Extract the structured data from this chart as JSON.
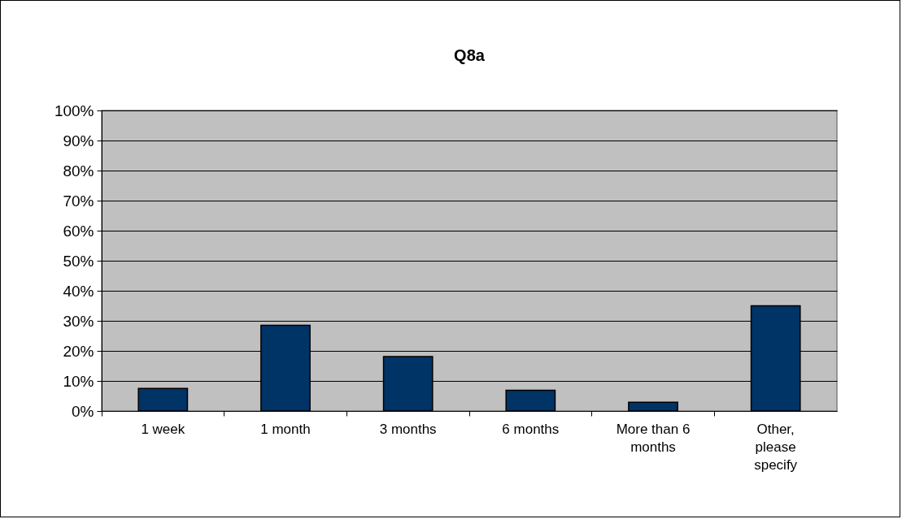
{
  "chart_data": {
    "type": "bar",
    "title": "Q8a",
    "categories": [
      "1 week",
      "1 month",
      "3 months",
      "6 months",
      "More than 6 months",
      "Other, please specify"
    ],
    "values": [
      7.5,
      28.5,
      18.1,
      6.9,
      2.9,
      35
    ],
    "color": "#003366",
    "ylim": [
      0,
      100
    ],
    "yticks": [
      {
        "value": 0,
        "label": "0%"
      },
      {
        "value": 10,
        "label": "10%"
      },
      {
        "value": 20,
        "label": "20%"
      },
      {
        "value": 30,
        "label": "30%"
      },
      {
        "value": 40,
        "label": "40%"
      },
      {
        "value": 50,
        "label": "50%"
      },
      {
        "value": 60,
        "label": "60%"
      },
      {
        "value": 70,
        "label": "70%"
      },
      {
        "value": 80,
        "label": "80%"
      },
      {
        "value": 90,
        "label": "90%"
      },
      {
        "value": 100,
        "label": "100%"
      }
    ],
    "grid": "y"
  }
}
